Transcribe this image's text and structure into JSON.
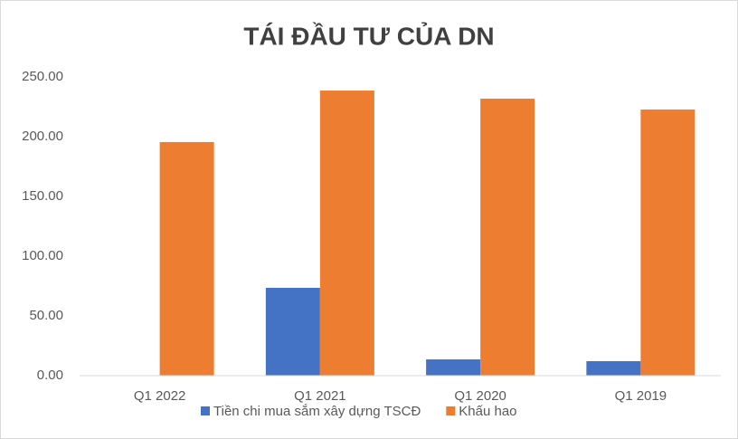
{
  "chart_data": {
    "type": "bar",
    "title": "TÁI ĐẦU TƯ CỦA DN",
    "categories": [
      "Q1 2022",
      "Q1 2021",
      "Q1 2020",
      "Q1 2019"
    ],
    "series": [
      {
        "name": "Tiền chi mua sắm xây dựng TSCĐ",
        "color": "#4472c4",
        "values": [
          0,
          73.5,
          13.6,
          12.1
        ]
      },
      {
        "name": "Khấu hao",
        "color": "#ed7d31",
        "values": [
          195.5,
          238.6,
          231.8,
          222.7
        ]
      }
    ],
    "ylim": [
      0,
      250
    ],
    "yticks": [
      {
        "value": 0,
        "label": "0.00"
      },
      {
        "value": 50,
        "label": "50.00"
      },
      {
        "value": 100,
        "label": "100.00"
      },
      {
        "value": 150,
        "label": "150.00"
      },
      {
        "value": 200,
        "label": "200.00"
      },
      {
        "value": 250,
        "label": "250.00"
      }
    ],
    "grid": false,
    "legend": "bottom"
  }
}
